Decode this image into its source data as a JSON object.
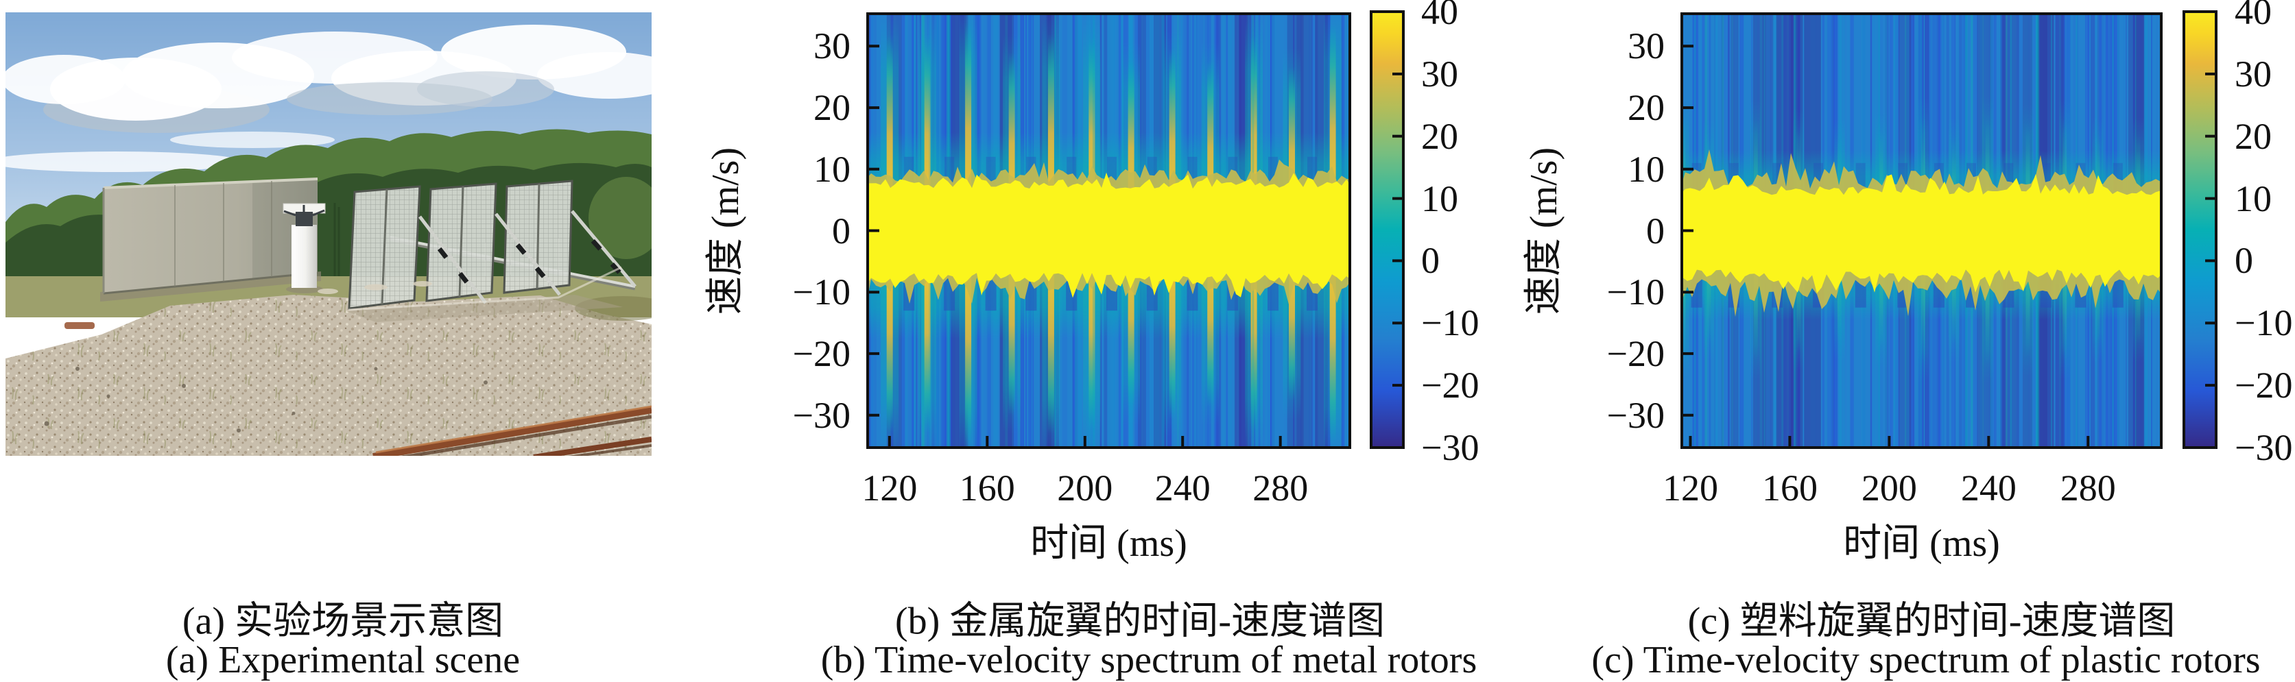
{
  "figure": {
    "panels": {
      "a": {
        "caption_zh": "(a) 实验场景示意图",
        "caption_en": "(a) Experimental scene",
        "photo_description": "Outdoor experimental field: grey concrete wall segments, a white cylindrical pedestal and three leaning metal mesh screens on a gravel pad, forest tree line and cumulus clouds behind, rusty rail track at the lower right."
      },
      "b": {
        "caption_zh": "(b) 金属旋翼的时间-速度谱图",
        "caption_en": "(b) Time-velocity spectrum of metal rotors"
      },
      "c": {
        "caption_zh": "(c) 塑料旋翼的时间-速度谱图",
        "caption_en": "(c) Time-velocity spectrum of plastic rotors"
      }
    }
  },
  "chart_data": [
    {
      "id": "metal",
      "panel": "b",
      "type": "heatmap",
      "xlabel": "时间 (ms)",
      "ylabel": "速度 (m/s)",
      "xlim": [
        110.5,
        309
      ],
      "ylim": [
        -35.5,
        35.5
      ],
      "xticks": [
        120,
        160,
        200,
        240,
        280
      ],
      "yticks": [
        30,
        20,
        10,
        0,
        -10,
        -20,
        -30
      ],
      "colorbar_range": [
        -30,
        40
      ],
      "colorbar_ticks": [
        40,
        30,
        20,
        10,
        0,
        -10,
        -20,
        -30
      ],
      "colormap": "parula",
      "grid": false,
      "features": {
        "body_band_v": [
          -7,
          7
        ],
        "body_band_level": 40,
        "blade_flash_times_ms": [
          120,
          136,
          153,
          170,
          186,
          203,
          219,
          236,
          252,
          269,
          285,
          301
        ],
        "blade_flash_v_extent": 27,
        "blade_flash_peak_level": 30,
        "sidelobe_haze_v_extent": 16,
        "background_level": -12
      }
    },
    {
      "id": "plastic",
      "panel": "c",
      "type": "heatmap",
      "xlabel": "时间 (ms)",
      "ylabel": "速度 (m/s)",
      "xlim": [
        116,
        310
      ],
      "ylim": [
        -35.5,
        35.5
      ],
      "xticks": [
        120,
        160,
        200,
        240,
        280
      ],
      "yticks": [
        30,
        20,
        10,
        0,
        -10,
        -20,
        -30
      ],
      "colorbar_range": [
        -30,
        40
      ],
      "colorbar_ticks": [
        40,
        30,
        20,
        10,
        0,
        -10,
        -20,
        -30
      ],
      "colormap": "parula",
      "grid": false,
      "features": {
        "body_band_v": [
          -6.5,
          6
        ],
        "body_band_level": 40,
        "blade_flash_times_ms": [
          117,
          128,
          147,
          163,
          180,
          197,
          214,
          226,
          240,
          256,
          270,
          284,
          300
        ],
        "blade_flash_v_extent": 14,
        "blade_flash_peak_level": 18,
        "sidelobe_haze_v_extent": 13,
        "background_level": -12
      }
    }
  ]
}
